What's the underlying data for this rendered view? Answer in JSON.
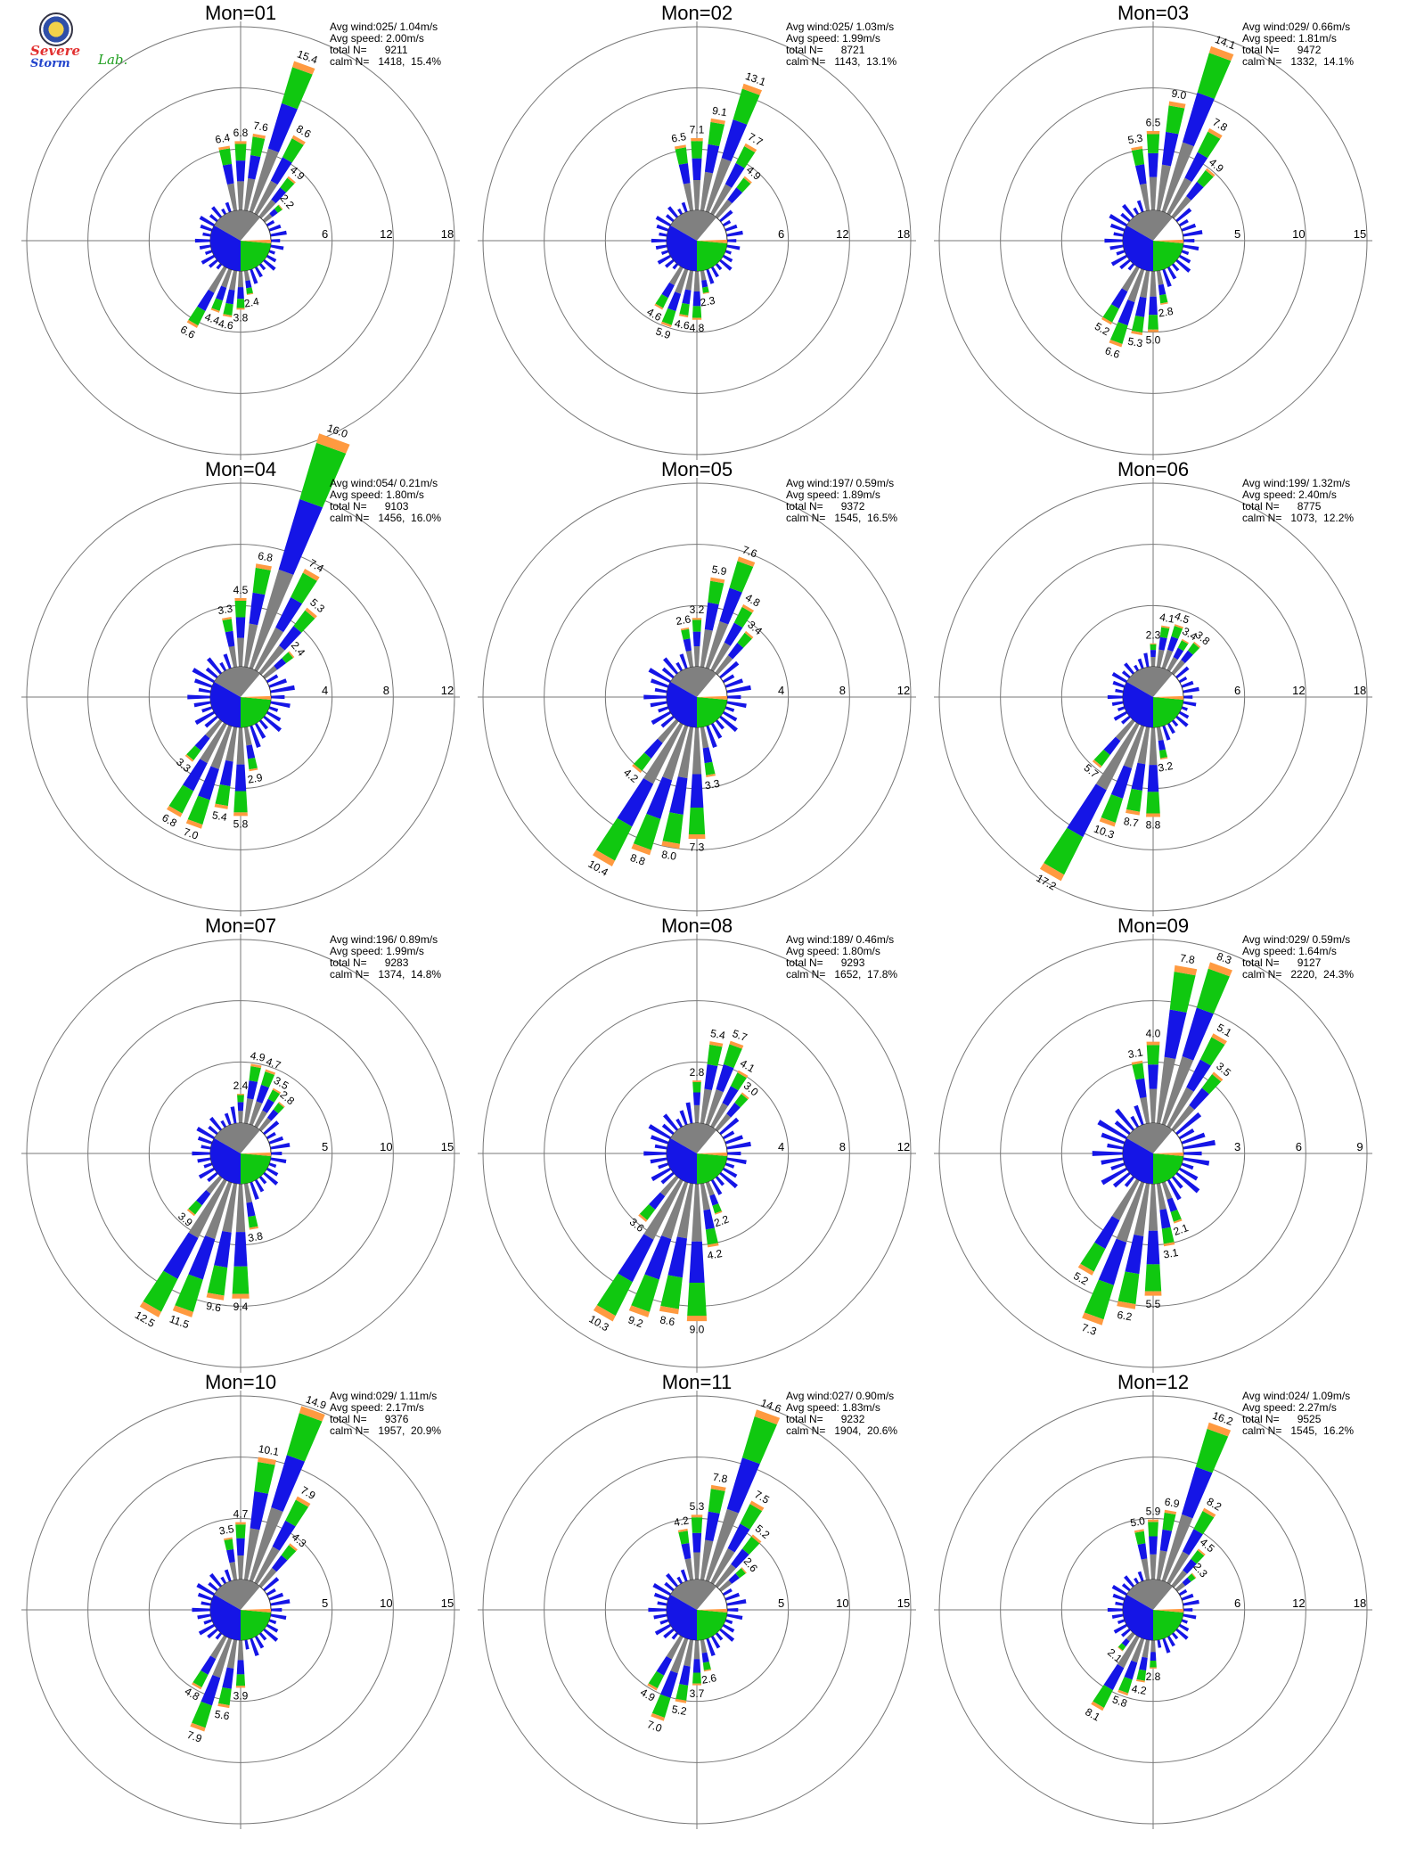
{
  "logo": {
    "line1": "Severe",
    "line2": "Storm",
    "line3": "Lab."
  },
  "colors": {
    "calm": "#808080",
    "s1": "#1515e6",
    "s2": "#10c810",
    "s3": "#ff9a40",
    "s4": "#ff5000",
    "s5": "#e8152a"
  },
  "chart_data": [
    {
      "type": "windrose",
      "title": "Mon=01",
      "avg_wind": "Avg wind:025/ 1.04m/s",
      "avg_speed": "Avg speed: 2.00m/s",
      "total_n": "total N=      9211",
      "calm_n": "calm N=   1418,  15.4%",
      "rings": [
        6,
        12,
        18
      ],
      "ring_labels": [
        "6",
        "12",
        "18"
      ],
      "petals": [
        {
          "dir": 0,
          "v": 6.8
        },
        {
          "dir": 10,
          "v": 7.6
        },
        {
          "dir": 20,
          "v": 15.4
        },
        {
          "dir": 30,
          "v": 8.6
        },
        {
          "dir": 40,
          "v": 4.9
        },
        {
          "dir": 50,
          "v": 2.2
        },
        {
          "dir": 180,
          "v": 3.8
        },
        {
          "dir": 190,
          "v": 4.6
        },
        {
          "dir": 200,
          "v": 4.4
        },
        {
          "dir": 210,
          "v": 6.6
        },
        {
          "dir": 350,
          "v": 6.4
        },
        {
          "dir": 170,
          "v": 2.4
        }
      ]
    },
    {
      "type": "windrose",
      "title": "Mon=02",
      "avg_wind": "Avg wind:025/ 1.03m/s",
      "avg_speed": "Avg speed: 1.99m/s",
      "total_n": "total N=      8721",
      "calm_n": "calm N=   1143,  13.1%",
      "rings": [
        6,
        12,
        18
      ],
      "ring_labels": [
        "6",
        "12",
        "18"
      ],
      "petals": [
        {
          "dir": 0,
          "v": 7.1
        },
        {
          "dir": 10,
          "v": 9.1
        },
        {
          "dir": 20,
          "v": 13.1
        },
        {
          "dir": 30,
          "v": 7.7
        },
        {
          "dir": 40,
          "v": 4.9
        },
        {
          "dir": 180,
          "v": 4.8
        },
        {
          "dir": 190,
          "v": 4.6
        },
        {
          "dir": 200,
          "v": 5.9
        },
        {
          "dir": 210,
          "v": 4.6
        },
        {
          "dir": 350,
          "v": 6.5
        },
        {
          "dir": 170,
          "v": 2.3
        }
      ]
    },
    {
      "type": "windrose",
      "title": "Mon=03",
      "avg_wind": "Avg wind:029/ 0.66m/s",
      "avg_speed": "Avg speed: 1.81m/s",
      "total_n": "total N=      9472",
      "calm_n": "calm N=   1332,  14.1%",
      "rings": [
        5,
        10,
        15
      ],
      "ring_labels": [
        "5",
        "10",
        "15"
      ],
      "petals": [
        {
          "dir": 0,
          "v": 6.5
        },
        {
          "dir": 10,
          "v": 9.0
        },
        {
          "dir": 20,
          "v": 14.1
        },
        {
          "dir": 30,
          "v": 7.8
        },
        {
          "dir": 40,
          "v": 4.9
        },
        {
          "dir": 180,
          "v": 5.0
        },
        {
          "dir": 190,
          "v": 5.3
        },
        {
          "dir": 200,
          "v": 6.6
        },
        {
          "dir": 210,
          "v": 5.2
        },
        {
          "dir": 350,
          "v": 5.3
        },
        {
          "dir": 170,
          "v": 2.8
        }
      ]
    },
    {
      "type": "windrose",
      "title": "Mon=04",
      "avg_wind": "Avg wind:054/ 0.21m/s",
      "avg_speed": "Avg speed: 1.80m/s",
      "total_n": "total N=      9103",
      "calm_n": "calm N=   1456,  16.0%",
      "rings": [
        4,
        8,
        12
      ],
      "ring_labels": [
        "4",
        "8",
        "12"
      ],
      "petals": [
        {
          "dir": 0,
          "v": 4.5
        },
        {
          "dir": 10,
          "v": 6.8
        },
        {
          "dir": 20,
          "v": 16.0
        },
        {
          "dir": 30,
          "v": 7.4
        },
        {
          "dir": 40,
          "v": 5.3
        },
        {
          "dir": 50,
          "v": 2.4
        },
        {
          "dir": 180,
          "v": 5.8
        },
        {
          "dir": 190,
          "v": 5.4
        },
        {
          "dir": 200,
          "v": 7.0
        },
        {
          "dir": 210,
          "v": 6.8
        },
        {
          "dir": 220,
          "v": 3.3
        },
        {
          "dir": 350,
          "v": 3.3
        },
        {
          "dir": 170,
          "v": 2.9
        }
      ]
    },
    {
      "type": "windrose",
      "title": "Mon=05",
      "avg_wind": "Avg wind:197/ 0.59m/s",
      "avg_speed": "Avg speed: 1.89m/s",
      "total_n": "total N=      9372",
      "calm_n": "calm N=   1545,  16.5%",
      "rings": [
        4,
        8,
        12
      ],
      "ring_labels": [
        "4",
        "8",
        "12"
      ],
      "petals": [
        {
          "dir": 0,
          "v": 3.2
        },
        {
          "dir": 10,
          "v": 5.9
        },
        {
          "dir": 20,
          "v": 7.6
        },
        {
          "dir": 30,
          "v": 4.8
        },
        {
          "dir": 40,
          "v": 3.4
        },
        {
          "dir": 180,
          "v": 7.3
        },
        {
          "dir": 190,
          "v": 8.0
        },
        {
          "dir": 200,
          "v": 8.8
        },
        {
          "dir": 210,
          "v": 10.4
        },
        {
          "dir": 220,
          "v": 4.2
        },
        {
          "dir": 350,
          "v": 2.6
        },
        {
          "dir": 170,
          "v": 3.3
        }
      ]
    },
    {
      "type": "windrose",
      "title": "Mon=06",
      "avg_wind": "Avg wind:199/ 1.32m/s",
      "avg_speed": "Avg speed: 2.40m/s",
      "total_n": "total N=      8775",
      "calm_n": "calm N=   1073,  12.2%",
      "rings": [
        6,
        12,
        18
      ],
      "ring_labels": [
        "6",
        "12",
        "18"
      ],
      "petals": [
        {
          "dir": 0,
          "v": 2.3
        },
        {
          "dir": 10,
          "v": 4.1
        },
        {
          "dir": 20,
          "v": 4.5
        },
        {
          "dir": 30,
          "v": 3.4
        },
        {
          "dir": 40,
          "v": 3.8
        },
        {
          "dir": 180,
          "v": 8.8
        },
        {
          "dir": 190,
          "v": 8.7
        },
        {
          "dir": 200,
          "v": 10.3
        },
        {
          "dir": 210,
          "v": 17.2
        },
        {
          "dir": 220,
          "v": 5.7
        },
        {
          "dir": 170,
          "v": 3.2
        }
      ]
    },
    {
      "type": "windrose",
      "title": "Mon=07",
      "avg_wind": "Avg wind:196/ 0.89m/s",
      "avg_speed": "Avg speed: 1.99m/s",
      "total_n": "total N=      9283",
      "calm_n": "calm N=   1374,  14.8%",
      "rings": [
        5,
        10,
        15
      ],
      "ring_labels": [
        "5",
        "10",
        "15"
      ],
      "petals": [
        {
          "dir": 0,
          "v": 2.4
        },
        {
          "dir": 10,
          "v": 4.9
        },
        {
          "dir": 20,
          "v": 4.7
        },
        {
          "dir": 30,
          "v": 3.5
        },
        {
          "dir": 40,
          "v": 2.8
        },
        {
          "dir": 180,
          "v": 9.4
        },
        {
          "dir": 190,
          "v": 9.6
        },
        {
          "dir": 200,
          "v": 11.5
        },
        {
          "dir": 210,
          "v": 12.5
        },
        {
          "dir": 220,
          "v": 3.9
        },
        {
          "dir": 170,
          "v": 3.8
        }
      ]
    },
    {
      "type": "windrose",
      "title": "Mon=08",
      "avg_wind": "Avg wind:189/ 0.46m/s",
      "avg_speed": "Avg speed: 1.80m/s",
      "total_n": "total N=      9293",
      "calm_n": "calm N=   1652,  17.8%",
      "rings": [
        4,
        8,
        12
      ],
      "ring_labels": [
        "4",
        "8",
        "12"
      ],
      "petals": [
        {
          "dir": 0,
          "v": 2.8
        },
        {
          "dir": 10,
          "v": 5.4
        },
        {
          "dir": 20,
          "v": 5.7
        },
        {
          "dir": 30,
          "v": 4.1
        },
        {
          "dir": 40,
          "v": 3.0
        },
        {
          "dir": 180,
          "v": 9.0
        },
        {
          "dir": 190,
          "v": 8.6
        },
        {
          "dir": 200,
          "v": 9.2
        },
        {
          "dir": 210,
          "v": 10.3
        },
        {
          "dir": 220,
          "v": 3.6
        },
        {
          "dir": 170,
          "v": 4.2
        },
        {
          "dir": 160,
          "v": 2.2
        }
      ]
    },
    {
      "type": "windrose",
      "title": "Mon=09",
      "avg_wind": "Avg wind:029/ 0.59m/s",
      "avg_speed": "Avg speed: 1.64m/s",
      "total_n": "total N=      9127",
      "calm_n": "calm N=   2220,  24.3%",
      "rings": [
        3,
        6,
        9
      ],
      "ring_labels": [
        "3",
        "6",
        "9"
      ],
      "petals": [
        {
          "dir": 0,
          "v": 4.0
        },
        {
          "dir": 10,
          "v": 7.8
        },
        {
          "dir": 20,
          "v": 8.3
        },
        {
          "dir": 30,
          "v": 5.1
        },
        {
          "dir": 40,
          "v": 3.5
        },
        {
          "dir": 180,
          "v": 5.5
        },
        {
          "dir": 190,
          "v": 6.2
        },
        {
          "dir": 200,
          "v": 7.3
        },
        {
          "dir": 210,
          "v": 5.2
        },
        {
          "dir": 350,
          "v": 3.1
        },
        {
          "dir": 170,
          "v": 3.1
        },
        {
          "dir": 160,
          "v": 2.1
        }
      ]
    },
    {
      "type": "windrose",
      "title": "Mon=10",
      "avg_wind": "Avg wind:029/ 1.11m/s",
      "avg_speed": "Avg speed: 2.17m/s",
      "total_n": "total N=      9376",
      "calm_n": "calm N=   1957,  20.9%",
      "rings": [
        5,
        10,
        15
      ],
      "ring_labels": [
        "5",
        "10",
        "15"
      ],
      "petals": [
        {
          "dir": 0,
          "v": 4.7
        },
        {
          "dir": 10,
          "v": 10.1
        },
        {
          "dir": 20,
          "v": 14.9
        },
        {
          "dir": 30,
          "v": 7.9
        },
        {
          "dir": 40,
          "v": 4.3
        },
        {
          "dir": 180,
          "v": 3.9
        },
        {
          "dir": 190,
          "v": 5.6
        },
        {
          "dir": 200,
          "v": 7.9
        },
        {
          "dir": 210,
          "v": 4.8
        },
        {
          "dir": 350,
          "v": 3.5
        }
      ]
    },
    {
      "type": "windrose",
      "title": "Mon=11",
      "avg_wind": "Avg wind:027/ 0.90m/s",
      "avg_speed": "Avg speed: 1.83m/s",
      "total_n": "total N=      9232",
      "calm_n": "calm N=   1904,  20.6%",
      "rings": [
        5,
        10,
        15
      ],
      "ring_labels": [
        "5",
        "10",
        "15"
      ],
      "petals": [
        {
          "dir": 0,
          "v": 5.3
        },
        {
          "dir": 10,
          "v": 7.8
        },
        {
          "dir": 20,
          "v": 14.6
        },
        {
          "dir": 30,
          "v": 7.5
        },
        {
          "dir": 40,
          "v": 5.2
        },
        {
          "dir": 50,
          "v": 2.6
        },
        {
          "dir": 180,
          "v": 3.7
        },
        {
          "dir": 190,
          "v": 5.2
        },
        {
          "dir": 200,
          "v": 7.0
        },
        {
          "dir": 210,
          "v": 4.9
        },
        {
          "dir": 350,
          "v": 4.2
        },
        {
          "dir": 170,
          "v": 2.6
        }
      ]
    },
    {
      "type": "windrose",
      "title": "Mon=12",
      "avg_wind": "Avg wind:024/ 1.09m/s",
      "avg_speed": "Avg speed: 2.27m/s",
      "total_n": "total N=      9525",
      "calm_n": "calm N=   1545,  16.2%",
      "rings": [
        6,
        12,
        18
      ],
      "ring_labels": [
        "6",
        "12",
        "18"
      ],
      "petals": [
        {
          "dir": 0,
          "v": 5.9
        },
        {
          "dir": 10,
          "v": 6.9
        },
        {
          "dir": 20,
          "v": 16.2
        },
        {
          "dir": 30,
          "v": 8.2
        },
        {
          "dir": 40,
          "v": 4.5
        },
        {
          "dir": 50,
          "v": 2.3
        },
        {
          "dir": 180,
          "v": 2.8
        },
        {
          "dir": 190,
          "v": 4.2
        },
        {
          "dir": 200,
          "v": 5.8
        },
        {
          "dir": 210,
          "v": 8.1
        },
        {
          "dir": 350,
          "v": 5.0
        },
        {
          "dir": 220,
          "v": 2.1
        }
      ]
    }
  ]
}
